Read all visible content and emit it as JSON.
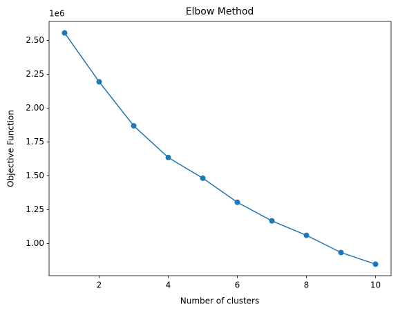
{
  "chart_data": {
    "type": "line",
    "title": "Elbow Method",
    "x_label": "Number of clusters",
    "y_label": "Objective Function",
    "y_offset_label": "1e6",
    "x": [
      1,
      2,
      3,
      4,
      5,
      6,
      7,
      8,
      9,
      10
    ],
    "series": [
      {
        "color": "#1f77b4",
        "values": [
          2556000,
          2195000,
          1870000,
          1636000,
          1483000,
          1305000,
          1168000,
          1061000,
          934000,
          848000
        ]
      }
    ],
    "xlim": [
      0.55,
      10.45
    ],
    "xticks": [
      2,
      4,
      6,
      8,
      10
    ],
    "ylim": [
      763000,
      2641000
    ],
    "yticks": [
      {
        "value": 1000000,
        "label": "1.00"
      },
      {
        "value": 1250000,
        "label": "1.25"
      },
      {
        "value": 1500000,
        "label": "1.50"
      },
      {
        "value": 1750000,
        "label": "1.75"
      },
      {
        "value": 2000000,
        "label": "2.00"
      },
      {
        "value": 2250000,
        "label": "2.25"
      },
      {
        "value": 2500000,
        "label": "2.50"
      }
    ],
    "grid": false
  }
}
